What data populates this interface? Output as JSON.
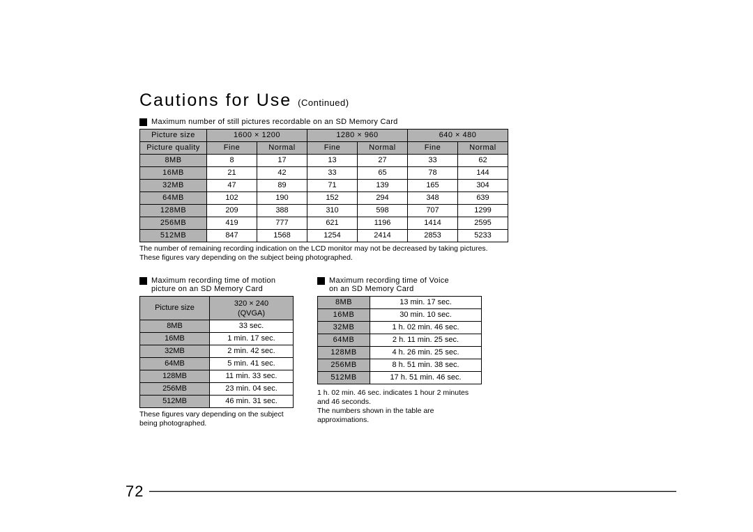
{
  "title": "Cautions for Use",
  "title_suffix": "(Continued)",
  "section1_heading": "Maximum number of still pictures recordable on an SD Memory Card",
  "table1": {
    "sizes_label": "Picture size",
    "quality_label": "Picture quality",
    "sizes": [
      "1600 × 1200",
      "1280 × 960",
      "640 × 480"
    ],
    "qualities": [
      "Fine",
      "Normal",
      "Fine",
      "Normal",
      "Fine",
      "Normal"
    ],
    "rows": [
      {
        "cap": "8MB",
        "v": [
          "8",
          "17",
          "13",
          "27",
          "33",
          "62"
        ]
      },
      {
        "cap": "16MB",
        "v": [
          "21",
          "42",
          "33",
          "65",
          "78",
          "144"
        ]
      },
      {
        "cap": "32MB",
        "v": [
          "47",
          "89",
          "71",
          "139",
          "165",
          "304"
        ]
      },
      {
        "cap": "64MB",
        "v": [
          "102",
          "190",
          "152",
          "294",
          "348",
          "639"
        ]
      },
      {
        "cap": "128MB",
        "v": [
          "209",
          "388",
          "310",
          "598",
          "707",
          "1299"
        ]
      },
      {
        "cap": "256MB",
        "v": [
          "419",
          "777",
          "621",
          "1196",
          "1414",
          "2595"
        ]
      },
      {
        "cap": "512MB",
        "v": [
          "847",
          "1568",
          "1254",
          "2414",
          "2853",
          "5233"
        ]
      }
    ]
  },
  "note1a": "The number of remaining recording indication on the LCD monitor may not be decreased by taking pictures.",
  "note1b": "These figures vary depending on the subject being photographed.",
  "section2_heading_a": "Maximum recording time of motion",
  "section2_heading_b": "picture on an SD Memory Card",
  "table2": {
    "sizes_label": "Picture size",
    "size_col": "320 × 240",
    "size_col_sub": "(QVGA)",
    "rows": [
      {
        "cap": "8MB",
        "v": "33 sec."
      },
      {
        "cap": "16MB",
        "v": "1 min. 17 sec."
      },
      {
        "cap": "32MB",
        "v": "2 min. 42 sec."
      },
      {
        "cap": "64MB",
        "v": "5 min. 41 sec."
      },
      {
        "cap": "128MB",
        "v": "11 min. 33 sec."
      },
      {
        "cap": "256MB",
        "v": "23 min. 04 sec."
      },
      {
        "cap": "512MB",
        "v": "46 min. 31 sec."
      }
    ]
  },
  "note2": "These figures vary depending on the subject being photographed.",
  "section3_heading_a": "Maximum recording time of Voice",
  "section3_heading_b": "on an SD Memory Card",
  "table3": {
    "rows": [
      {
        "cap": "8MB",
        "v": "13 min. 17 sec."
      },
      {
        "cap": "16MB",
        "v": "30 min. 10 sec."
      },
      {
        "cap": "32MB",
        "v": "1 h. 02 min. 46 sec."
      },
      {
        "cap": "64MB",
        "v": "2 h. 11 min. 25 sec."
      },
      {
        "cap": "128MB",
        "v": "4 h. 26 min. 25 sec."
      },
      {
        "cap": "256MB",
        "v": "8 h. 51 min. 38 sec."
      },
      {
        "cap": "512MB",
        "v": "17 h. 51 min. 46 sec."
      }
    ]
  },
  "note3a": "1 h. 02 min. 46 sec. indicates 1 hour 2 minutes and 46 seconds.",
  "note3b": "The numbers shown in the table are approximations.",
  "page_number": "72"
}
